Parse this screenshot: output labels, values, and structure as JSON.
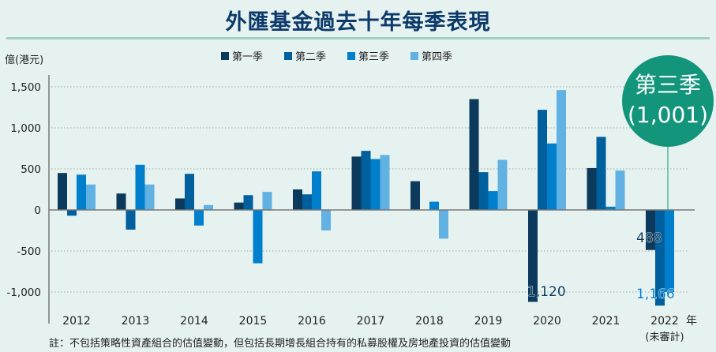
{
  "chart_data": {
    "type": "bar",
    "title": "外匯基金過去十年每季表現",
    "ylabel": "億(港元)",
    "xlabel": "年",
    "ylim": [
      -1250,
      1650
    ],
    "yticks": [
      1500,
      1000,
      500,
      0,
      -500,
      -1000
    ],
    "ytick_labels": [
      "1,500",
      "1,000",
      "500",
      "0",
      "-500",
      "-1,000"
    ],
    "grid": true,
    "legend_position": "top",
    "categories": [
      "2012",
      "2013",
      "2014",
      "2015",
      "2016",
      "2017",
      "2018",
      "2019",
      "2020",
      "2021",
      "2022"
    ],
    "category_sublabels": {
      "2022": "(未審計)"
    },
    "series": [
      {
        "name": "第一季",
        "color": "#0b3a5c",
        "values": [
          450,
          200,
          140,
          90,
          250,
          650,
          350,
          1350,
          -1120,
          510,
          -488
        ]
      },
      {
        "name": "第二季",
        "color": "#00609e",
        "values": [
          -70,
          -240,
          440,
          180,
          190,
          720,
          0,
          460,
          1220,
          890,
          -1166
        ]
      },
      {
        "name": "第三季",
        "color": "#0080cc",
        "values": [
          430,
          550,
          -190,
          -650,
          470,
          620,
          100,
          230,
          810,
          40,
          -1001
        ]
      },
      {
        "name": "第四季",
        "color": "#62b1e3",
        "values": [
          310,
          310,
          60,
          220,
          -250,
          670,
          -350,
          610,
          1460,
          480,
          null
        ]
      }
    ],
    "annotations": [
      {
        "text": "1,120",
        "category": "2020",
        "series": "第一季"
      },
      {
        "text": "488",
        "category": "2022",
        "series": "第一季"
      },
      {
        "text": "1,166",
        "category": "2022",
        "series": "第二季"
      }
    ],
    "callout": {
      "line1": "第三季",
      "line2": "(1,001)",
      "category": "2022",
      "series": "第三季",
      "color": "#12957a"
    }
  },
  "footnote": "註：不包括策略性資產組合的估值變動，但包括長期增長組合持有的私募股權及房地產投資的估值變動"
}
